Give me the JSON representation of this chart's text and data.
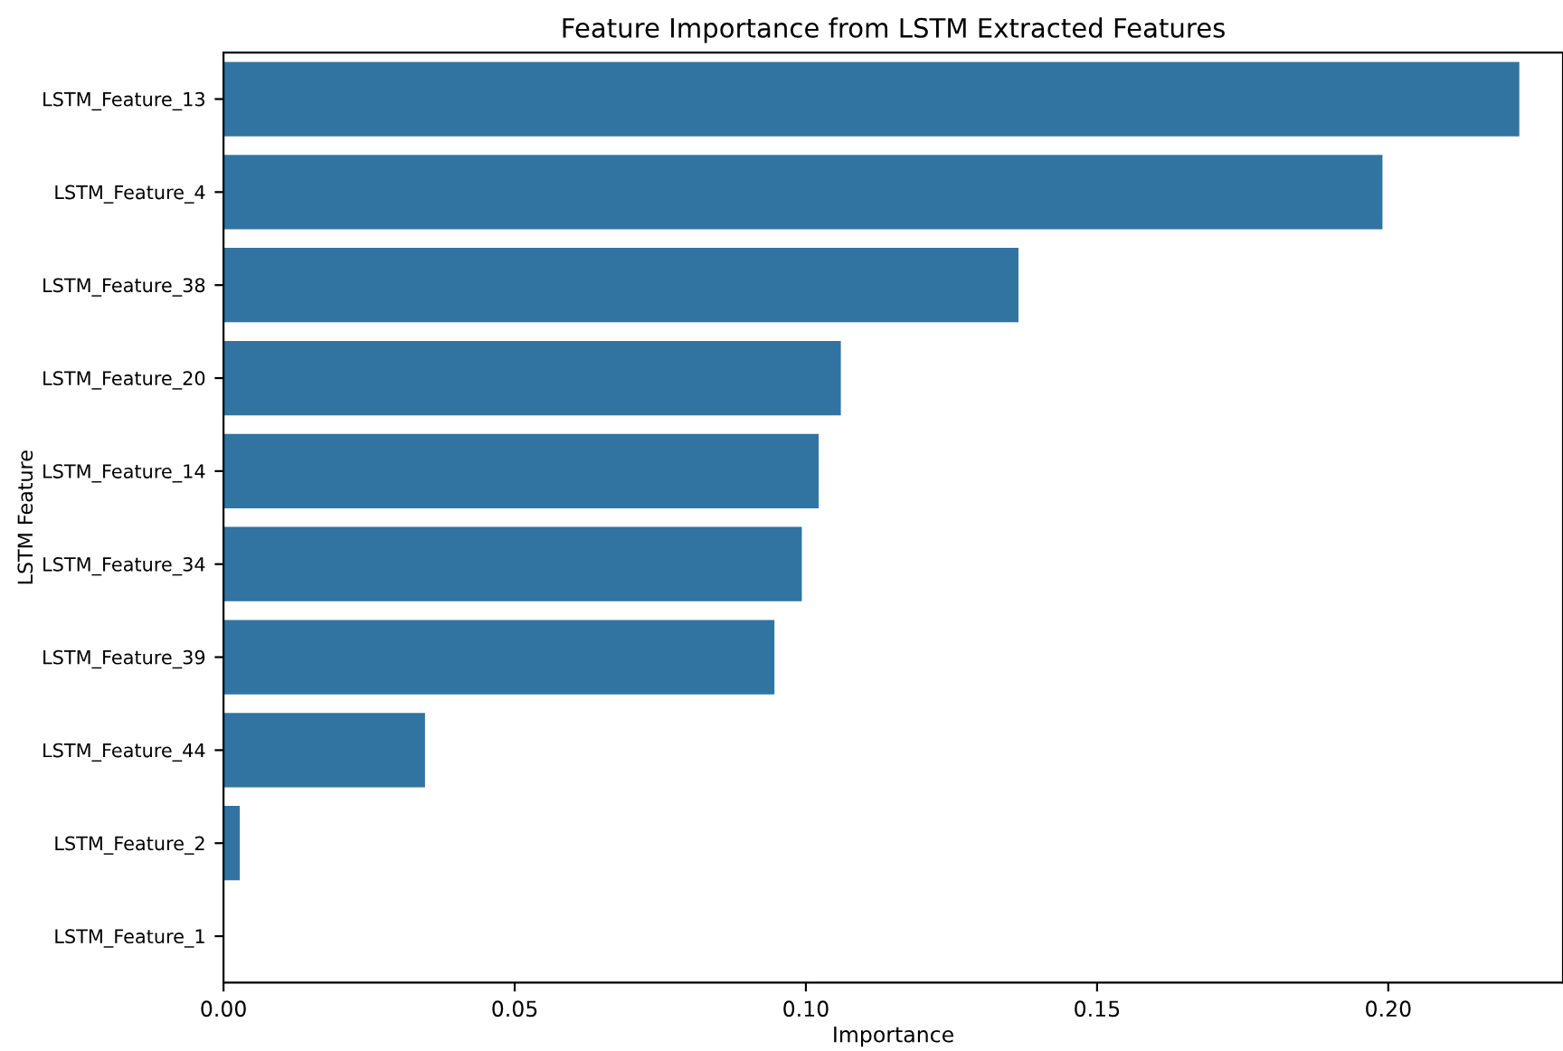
{
  "chart_data": {
    "type": "bar",
    "orientation": "horizontal",
    "title": "Feature Importance from LSTM Extracted Features",
    "xlabel": "Importance",
    "ylabel": "LSTM Feature",
    "categories": [
      "LSTM_Feature_13",
      "LSTM_Feature_4",
      "LSTM_Feature_38",
      "LSTM_Feature_20",
      "LSTM_Feature_14",
      "LSTM_Feature_34",
      "LSTM_Feature_39",
      "LSTM_Feature_44",
      "LSTM_Feature_2",
      "LSTM_Feature_1"
    ],
    "values": [
      0.2225,
      0.199,
      0.1365,
      0.106,
      0.1022,
      0.0993,
      0.0946,
      0.0346,
      0.0028,
      0.0
    ],
    "color": "#3274a1",
    "xlim": [
      0,
      0.23
    ],
    "xticks": [
      {
        "value": 0,
        "label": "0.00"
      },
      {
        "value": 0.05,
        "label": "0.05"
      },
      {
        "value": 0.1,
        "label": "0.10"
      },
      {
        "value": 0.15,
        "label": "0.15"
      },
      {
        "value": 0.2,
        "label": "0.20"
      }
    ],
    "grid": false
  }
}
